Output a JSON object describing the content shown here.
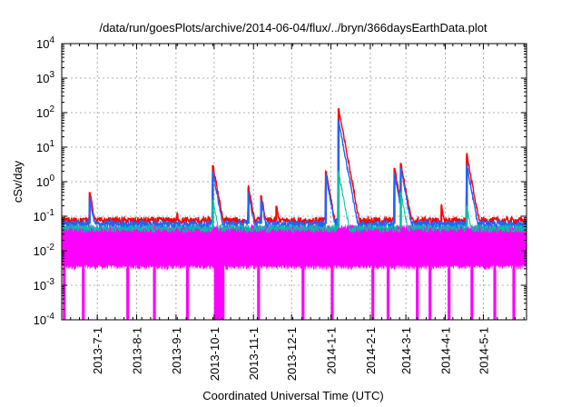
{
  "chart_data": {
    "type": "line",
    "title": "/data/run/goesPlots/archive/2014-06-04/flux/../bryn/366daysEarthData.plot",
    "xlabel": "Coordinated Universal Time (UTC)",
    "ylabel": "cSv/day",
    "yscale": "log",
    "ylim": [
      0.0001,
      10000
    ],
    "xlim": [
      "2013-06-03",
      "2014-06-04"
    ],
    "grid": true,
    "legend": "none",
    "x_ticks": [
      "2013-7-1",
      "2013-8-1",
      "2013-9-1",
      "2013-10-1",
      "2013-11-1",
      "2013-12-1",
      "2014-1-1",
      "2014-2-1",
      "2014-3-1",
      "2014-4-1",
      "2014-5-1"
    ],
    "y_ticks": [
      {
        "base": "10",
        "exp": "-4",
        "value": 0.0001
      },
      {
        "base": "10",
        "exp": "-3",
        "value": 0.001
      },
      {
        "base": "10",
        "exp": "-2",
        "value": 0.01
      },
      {
        "base": "10",
        "exp": "-1",
        "value": 0.1
      },
      {
        "base": "10",
        "exp": "0",
        "value": 1
      },
      {
        "base": "10",
        "exp": "1",
        "value": 10
      },
      {
        "base": "10",
        "exp": "2",
        "value": 100
      },
      {
        "base": "10",
        "exp": "3",
        "value": 1000
      },
      {
        "base": "10",
        "exp": "4",
        "value": 10000
      }
    ],
    "series": [
      {
        "color": "#ff0000",
        "baseline": 0.075,
        "events": [
          {
            "date": "2013-06-25",
            "peak": 0.5
          },
          {
            "date": "2013-09-02",
            "peak": 0.12
          },
          {
            "date": "2013-09-30",
            "peak": 3.0
          },
          {
            "date": "2013-10-28",
            "peak": 0.7
          },
          {
            "date": "2013-11-07",
            "peak": 0.4
          },
          {
            "date": "2013-11-19",
            "peak": 0.2
          },
          {
            "date": "2013-12-28",
            "peak": 2.0
          },
          {
            "date": "2014-01-07",
            "peak": 130
          },
          {
            "date": "2014-02-20",
            "peak": 2.5
          },
          {
            "date": "2014-02-25",
            "peak": 3.5
          },
          {
            "date": "2014-03-29",
            "peak": 0.2
          },
          {
            "date": "2014-04-18",
            "peak": 6.0
          }
        ]
      },
      {
        "color": "#1e64ff",
        "baseline": 0.06,
        "events": [
          {
            "date": "2013-06-25",
            "peak": 0.35
          },
          {
            "date": "2013-09-30",
            "peak": 2.0
          },
          {
            "date": "2013-10-28",
            "peak": 0.5
          },
          {
            "date": "2013-11-07",
            "peak": 0.3
          },
          {
            "date": "2013-12-28",
            "peak": 1.5
          },
          {
            "date": "2014-01-07",
            "peak": 60
          },
          {
            "date": "2014-02-20",
            "peak": 1.8
          },
          {
            "date": "2014-02-25",
            "peak": 2.5
          },
          {
            "date": "2014-04-18",
            "peak": 3.0
          }
        ]
      },
      {
        "color": "#00c0a0",
        "baseline": 0.045,
        "events": [
          {
            "date": "2013-09-30",
            "peak": 0.3
          },
          {
            "date": "2014-01-07",
            "peak": 2.0
          },
          {
            "date": "2014-02-25",
            "peak": 0.5
          },
          {
            "date": "2014-04-18",
            "peak": 0.2
          }
        ]
      },
      {
        "color": "#ff00ff",
        "baseline": 0.03,
        "floor": 0.003,
        "dips": [
          "2013-06-05",
          "2013-06-20",
          "2013-07-25",
          "2013-08-15",
          "2013-09-10",
          "2013-10-02",
          "2013-10-04",
          "2013-10-06",
          "2013-10-08",
          "2013-11-05",
          "2013-12-10",
          "2014-01-02",
          "2014-02-03",
          "2014-02-15",
          "2014-03-10",
          "2014-03-20",
          "2014-04-04",
          "2014-04-22",
          "2014-05-10",
          "2014-05-25"
        ]
      }
    ]
  }
}
